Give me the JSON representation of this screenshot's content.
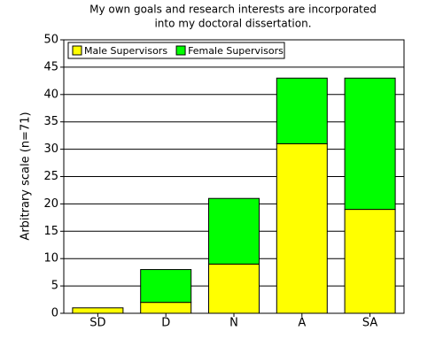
{
  "chart_data": {
    "type": "stacked-bar",
    "title": [
      "My own goals and research interests are incorporated",
      "into my doctoral dissertation."
    ],
    "y_label": "Arbitrary scale (n=71)",
    "categories": [
      "SD",
      "D",
      "N",
      "A",
      "SA"
    ],
    "series": [
      {
        "name": "Male Supervisors",
        "color": "#ffff00",
        "values": [
          1,
          2,
          9,
          31,
          19
        ]
      },
      {
        "name": "Female Supervisors",
        "color": "#00ff00",
        "values": [
          0,
          6,
          12,
          12,
          24
        ]
      }
    ],
    "ylim": [
      0,
      50
    ],
    "yticks": [
      0,
      5,
      10,
      15,
      20,
      25,
      30,
      35,
      40,
      45,
      50
    ],
    "grid": true,
    "legend": "top-left"
  }
}
